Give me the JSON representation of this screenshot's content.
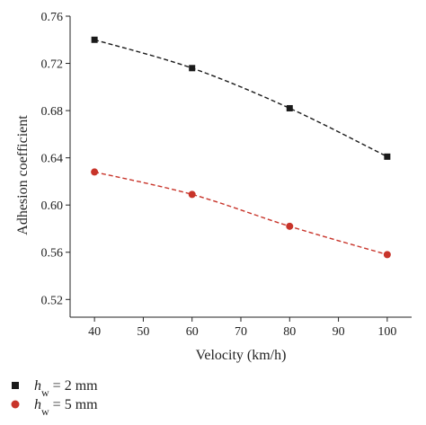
{
  "chart_data": {
    "type": "line",
    "title": "",
    "xlabel": "Velocity (km/h)",
    "ylabel": "Adhesion coefficient",
    "xlim": [
      35,
      105
    ],
    "ylim": [
      0.505,
      0.76
    ],
    "xticks": [
      40,
      50,
      60,
      70,
      80,
      90,
      100
    ],
    "yticks": [
      0.52,
      0.56,
      0.6,
      0.64,
      0.68,
      0.72,
      0.76
    ],
    "ytick_labels": [
      "0.52",
      "0.56",
      "0.60",
      "0.64",
      "0.68",
      "0.72",
      "0.76"
    ],
    "grid": false,
    "legend_position": "bottom-left",
    "series": [
      {
        "id": "s1",
        "legend": {
          "var": "h",
          "sub": "w",
          "rest": " = 2 mm"
        },
        "marker": "square",
        "color": "#1a1a1a",
        "x": [
          40,
          60,
          80,
          100
        ],
        "y": [
          0.74,
          0.716,
          0.682,
          0.641
        ]
      },
      {
        "id": "s2",
        "legend": {
          "var": "h",
          "sub": "w",
          "rest": " = 5 mm"
        },
        "marker": "circle",
        "color": "#c8342a",
        "x": [
          40,
          60,
          80,
          100
        ],
        "y": [
          0.628,
          0.609,
          0.582,
          0.558
        ]
      }
    ]
  }
}
